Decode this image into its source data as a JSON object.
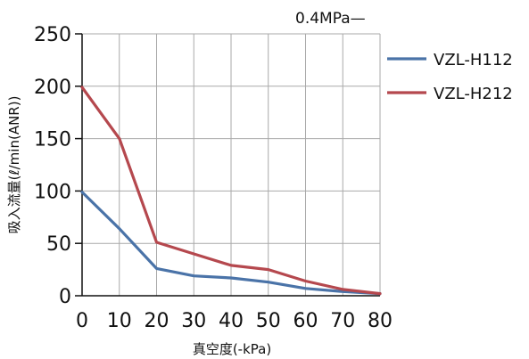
{
  "chart_data": {
    "type": "line",
    "x": [
      0,
      10,
      20,
      30,
      40,
      50,
      60,
      70,
      80
    ],
    "series": [
      {
        "name": "VZL-H112",
        "color": "#4a73a8",
        "values": [
          99,
          64,
          26,
          19,
          17,
          13,
          7,
          4,
          2
        ]
      },
      {
        "name": "VZL-H212",
        "color": "#b5484e",
        "values": [
          199,
          150,
          51,
          40,
          29,
          25,
          14,
          6,
          2
        ]
      }
    ],
    "title": "",
    "annotation": "0.4MPa—",
    "xlabel": "真空度(-kPa)",
    "ylabel": "吸入流量(ℓ/min(ANR))",
    "xlim": [
      0,
      80
    ],
    "ylim": [
      0,
      250
    ],
    "xticks": [
      0,
      10,
      20,
      30,
      40,
      50,
      60,
      70,
      80
    ],
    "yticks": [
      0,
      50,
      100,
      150,
      200,
      250
    ],
    "grid": true,
    "legend_position": "right",
    "gridColor": "#a9a9a9"
  }
}
